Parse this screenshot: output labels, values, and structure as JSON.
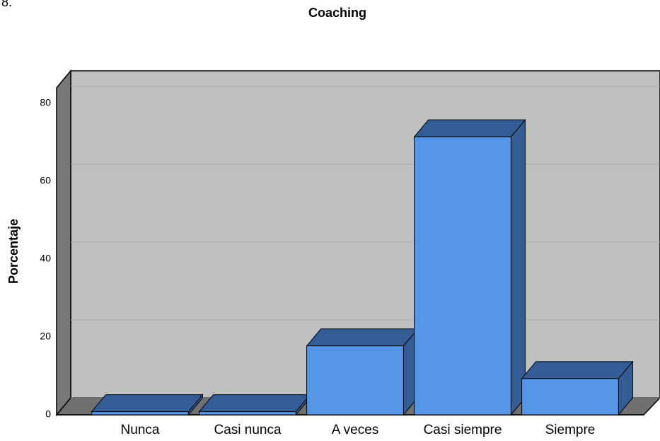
{
  "chart_data": {
    "type": "bar",
    "corner_label": "8.",
    "title": "Coaching",
    "y_label": "Porcentaje",
    "categories": [
      "Nunca",
      "Casi nunca",
      "A veces",
      "Casi siempre",
      "Siempre"
    ],
    "values": [
      0.8,
      0.8,
      17.7,
      71.4,
      9.3
    ],
    "color": "#5596e6",
    "side_color": "#345d96",
    "ylim": [
      0,
      84
    ],
    "yticks": [
      0,
      20,
      40,
      60,
      80
    ],
    "grid": true
  }
}
